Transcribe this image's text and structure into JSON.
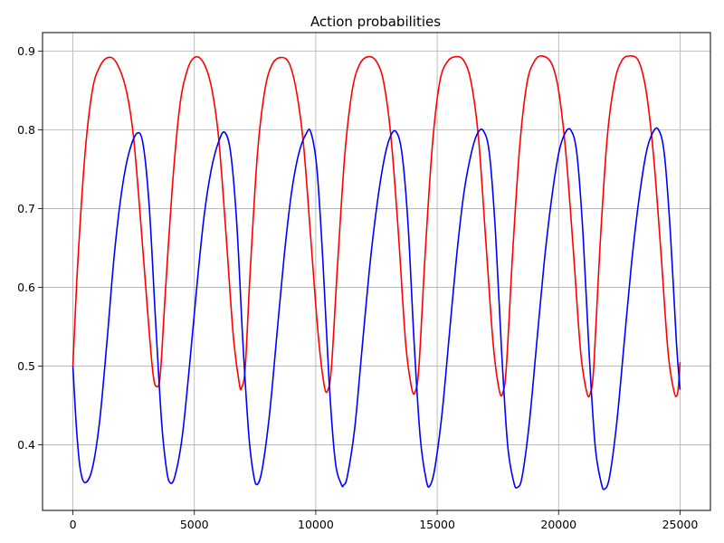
{
  "chart_data": {
    "type": "line",
    "title": "Action probabilities",
    "xlabel": "",
    "ylabel": "",
    "xlim": [
      -1250,
      26250
    ],
    "ylim": [
      0.3167,
      0.9237
    ],
    "xticks": [
      0,
      5000,
      10000,
      15000,
      20000,
      25000
    ],
    "xtick_labels": [
      "0",
      "5000",
      "10000",
      "15000",
      "20000",
      "25000"
    ],
    "yticks": [
      0.4,
      0.5,
      0.6,
      0.7,
      0.8,
      0.9
    ],
    "ytick_labels": [
      "0.4",
      "0.5",
      "0.6",
      "0.7",
      "0.8",
      "0.9"
    ],
    "grid": true,
    "legend": "none",
    "series": [
      {
        "color": "#ff0000",
        "x": [
          0,
          200,
          500,
          800,
          1100,
          1450,
          1800,
          2200,
          2500,
          2800,
          3100,
          3300,
          3450,
          3600,
          3800,
          4100,
          4400,
          4700,
          5000,
          5350,
          5700,
          6000,
          6300,
          6600,
          6850,
          6950,
          7100,
          7300,
          7600,
          7900,
          8200,
          8550,
          8900,
          9200,
          9500,
          9800,
          10100,
          10350,
          10500,
          10650,
          10900,
          11200,
          11500,
          11800,
          12150,
          12500,
          12800,
          13100,
          13400,
          13700,
          13950,
          14100,
          14250,
          14500,
          14800,
          15100,
          15400,
          15750,
          16100,
          16400,
          16700,
          17000,
          17300,
          17550,
          17700,
          17850,
          18100,
          18400,
          18700,
          19000,
          19300,
          19700,
          20000,
          20300,
          20600,
          20900,
          21150,
          21300,
          21450,
          21700,
          22000,
          22300,
          22600,
          22950,
          23300,
          23600,
          23900,
          24200,
          24500,
          24750,
          24900,
          25000
        ],
        "y": [
          0.5,
          0.63,
          0.77,
          0.85,
          0.88,
          0.892,
          0.885,
          0.85,
          0.79,
          0.68,
          0.56,
          0.49,
          0.474,
          0.49,
          0.59,
          0.73,
          0.83,
          0.875,
          0.892,
          0.887,
          0.855,
          0.79,
          0.67,
          0.54,
          0.478,
          0.473,
          0.5,
          0.62,
          0.77,
          0.85,
          0.883,
          0.892,
          0.885,
          0.85,
          0.78,
          0.66,
          0.54,
          0.475,
          0.47,
          0.5,
          0.63,
          0.77,
          0.85,
          0.883,
          0.893,
          0.887,
          0.86,
          0.79,
          0.67,
          0.53,
          0.472,
          0.468,
          0.5,
          0.64,
          0.78,
          0.86,
          0.886,
          0.893,
          0.888,
          0.86,
          0.79,
          0.66,
          0.53,
          0.47,
          0.466,
          0.5,
          0.64,
          0.78,
          0.86,
          0.887,
          0.894,
          0.885,
          0.85,
          0.77,
          0.65,
          0.52,
          0.468,
          0.465,
          0.5,
          0.65,
          0.79,
          0.86,
          0.888,
          0.894,
          0.887,
          0.85,
          0.77,
          0.65,
          0.52,
          0.468,
          0.466,
          0.505
        ]
      },
      {
        "color": "#0000ff",
        "x": [
          0,
          150,
          300,
          500,
          800,
          1100,
          1400,
          1700,
          2000,
          2300,
          2650,
          2900,
          3150,
          3400,
          3650,
          3850,
          4000,
          4200,
          4500,
          4800,
          5100,
          5400,
          5700,
          6000,
          6250,
          6500,
          6750,
          7000,
          7250,
          7450,
          7600,
          7800,
          8100,
          8400,
          8700,
          9000,
          9300,
          9600,
          9800,
          10050,
          10300,
          10550,
          10800,
          11050,
          11150,
          11300,
          11600,
          11900,
          12200,
          12500,
          12800,
          13050,
          13300,
          13550,
          13800,
          14050,
          14300,
          14550,
          14700,
          14900,
          15200,
          15500,
          15800,
          16100,
          16400,
          16650,
          16900,
          17150,
          17400,
          17650,
          17900,
          18150,
          18300,
          18500,
          18800,
          19100,
          19400,
          19700,
          20000,
          20250,
          20500,
          20750,
          21000,
          21250,
          21500,
          21750,
          21900,
          22100,
          22400,
          22700,
          23000,
          23300,
          23600,
          23850,
          24100,
          24350,
          24600,
          24850,
          25000
        ],
        "y": [
          0.5,
          0.42,
          0.37,
          0.352,
          0.37,
          0.43,
          0.53,
          0.64,
          0.72,
          0.77,
          0.796,
          0.78,
          0.7,
          0.56,
          0.43,
          0.37,
          0.352,
          0.36,
          0.41,
          0.5,
          0.6,
          0.69,
          0.75,
          0.785,
          0.797,
          0.77,
          0.68,
          0.53,
          0.41,
          0.36,
          0.35,
          0.37,
          0.44,
          0.54,
          0.64,
          0.72,
          0.77,
          0.795,
          0.797,
          0.75,
          0.63,
          0.48,
          0.38,
          0.35,
          0.349,
          0.36,
          0.42,
          0.52,
          0.62,
          0.7,
          0.76,
          0.79,
          0.798,
          0.77,
          0.68,
          0.53,
          0.41,
          0.355,
          0.348,
          0.37,
          0.44,
          0.54,
          0.64,
          0.72,
          0.77,
          0.795,
          0.799,
          0.77,
          0.67,
          0.52,
          0.4,
          0.353,
          0.346,
          0.36,
          0.43,
          0.53,
          0.63,
          0.71,
          0.77,
          0.795,
          0.8,
          0.77,
          0.67,
          0.52,
          0.4,
          0.352,
          0.344,
          0.36,
          0.43,
          0.53,
          0.63,
          0.71,
          0.77,
          0.795,
          0.801,
          0.77,
          0.67,
          0.53,
          0.47
        ]
      }
    ]
  }
}
